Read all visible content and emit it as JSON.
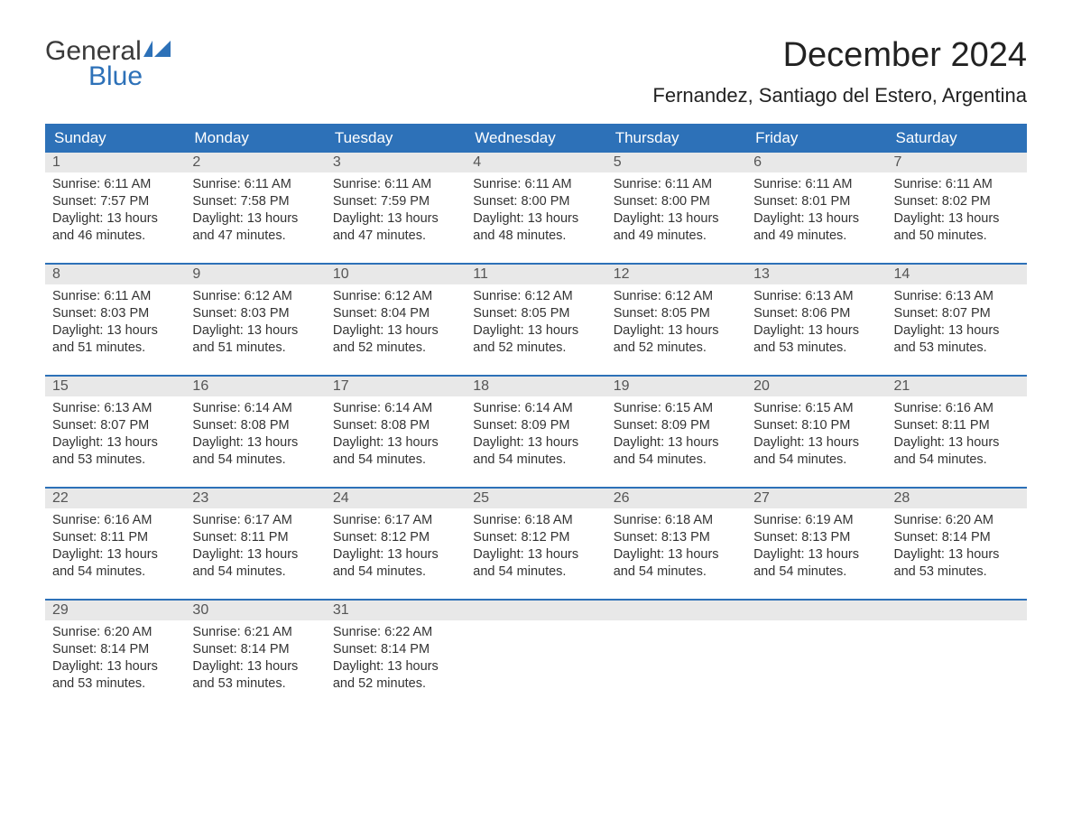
{
  "logo": {
    "general": "General",
    "blue": "Blue"
  },
  "title": "December 2024",
  "location": "Fernandez, Santiago del Estero, Argentina",
  "colors": {
    "header_bg": "#2d71b8",
    "daynum_bg": "#e8e8e8",
    "page_bg": "#ffffff",
    "text": "#333333",
    "logo_blue": "#2d71b8"
  },
  "calendar": {
    "type": "table",
    "columns": [
      "Sunday",
      "Monday",
      "Tuesday",
      "Wednesday",
      "Thursday",
      "Friday",
      "Saturday"
    ],
    "cell_font_size": 14.5,
    "header_font_size": 17,
    "weeks": [
      [
        {
          "n": "1",
          "sunrise": "Sunrise: 6:11 AM",
          "sunset": "Sunset: 7:57 PM",
          "d1": "Daylight: 13 hours",
          "d2": "and 46 minutes."
        },
        {
          "n": "2",
          "sunrise": "Sunrise: 6:11 AM",
          "sunset": "Sunset: 7:58 PM",
          "d1": "Daylight: 13 hours",
          "d2": "and 47 minutes."
        },
        {
          "n": "3",
          "sunrise": "Sunrise: 6:11 AM",
          "sunset": "Sunset: 7:59 PM",
          "d1": "Daylight: 13 hours",
          "d2": "and 47 minutes."
        },
        {
          "n": "4",
          "sunrise": "Sunrise: 6:11 AM",
          "sunset": "Sunset: 8:00 PM",
          "d1": "Daylight: 13 hours",
          "d2": "and 48 minutes."
        },
        {
          "n": "5",
          "sunrise": "Sunrise: 6:11 AM",
          "sunset": "Sunset: 8:00 PM",
          "d1": "Daylight: 13 hours",
          "d2": "and 49 minutes."
        },
        {
          "n": "6",
          "sunrise": "Sunrise: 6:11 AM",
          "sunset": "Sunset: 8:01 PM",
          "d1": "Daylight: 13 hours",
          "d2": "and 49 minutes."
        },
        {
          "n": "7",
          "sunrise": "Sunrise: 6:11 AM",
          "sunset": "Sunset: 8:02 PM",
          "d1": "Daylight: 13 hours",
          "d2": "and 50 minutes."
        }
      ],
      [
        {
          "n": "8",
          "sunrise": "Sunrise: 6:11 AM",
          "sunset": "Sunset: 8:03 PM",
          "d1": "Daylight: 13 hours",
          "d2": "and 51 minutes."
        },
        {
          "n": "9",
          "sunrise": "Sunrise: 6:12 AM",
          "sunset": "Sunset: 8:03 PM",
          "d1": "Daylight: 13 hours",
          "d2": "and 51 minutes."
        },
        {
          "n": "10",
          "sunrise": "Sunrise: 6:12 AM",
          "sunset": "Sunset: 8:04 PM",
          "d1": "Daylight: 13 hours",
          "d2": "and 52 minutes."
        },
        {
          "n": "11",
          "sunrise": "Sunrise: 6:12 AM",
          "sunset": "Sunset: 8:05 PM",
          "d1": "Daylight: 13 hours",
          "d2": "and 52 minutes."
        },
        {
          "n": "12",
          "sunrise": "Sunrise: 6:12 AM",
          "sunset": "Sunset: 8:05 PM",
          "d1": "Daylight: 13 hours",
          "d2": "and 52 minutes."
        },
        {
          "n": "13",
          "sunrise": "Sunrise: 6:13 AM",
          "sunset": "Sunset: 8:06 PM",
          "d1": "Daylight: 13 hours",
          "d2": "and 53 minutes."
        },
        {
          "n": "14",
          "sunrise": "Sunrise: 6:13 AM",
          "sunset": "Sunset: 8:07 PM",
          "d1": "Daylight: 13 hours",
          "d2": "and 53 minutes."
        }
      ],
      [
        {
          "n": "15",
          "sunrise": "Sunrise: 6:13 AM",
          "sunset": "Sunset: 8:07 PM",
          "d1": "Daylight: 13 hours",
          "d2": "and 53 minutes."
        },
        {
          "n": "16",
          "sunrise": "Sunrise: 6:14 AM",
          "sunset": "Sunset: 8:08 PM",
          "d1": "Daylight: 13 hours",
          "d2": "and 54 minutes."
        },
        {
          "n": "17",
          "sunrise": "Sunrise: 6:14 AM",
          "sunset": "Sunset: 8:08 PM",
          "d1": "Daylight: 13 hours",
          "d2": "and 54 minutes."
        },
        {
          "n": "18",
          "sunrise": "Sunrise: 6:14 AM",
          "sunset": "Sunset: 8:09 PM",
          "d1": "Daylight: 13 hours",
          "d2": "and 54 minutes."
        },
        {
          "n": "19",
          "sunrise": "Sunrise: 6:15 AM",
          "sunset": "Sunset: 8:09 PM",
          "d1": "Daylight: 13 hours",
          "d2": "and 54 minutes."
        },
        {
          "n": "20",
          "sunrise": "Sunrise: 6:15 AM",
          "sunset": "Sunset: 8:10 PM",
          "d1": "Daylight: 13 hours",
          "d2": "and 54 minutes."
        },
        {
          "n": "21",
          "sunrise": "Sunrise: 6:16 AM",
          "sunset": "Sunset: 8:11 PM",
          "d1": "Daylight: 13 hours",
          "d2": "and 54 minutes."
        }
      ],
      [
        {
          "n": "22",
          "sunrise": "Sunrise: 6:16 AM",
          "sunset": "Sunset: 8:11 PM",
          "d1": "Daylight: 13 hours",
          "d2": "and 54 minutes."
        },
        {
          "n": "23",
          "sunrise": "Sunrise: 6:17 AM",
          "sunset": "Sunset: 8:11 PM",
          "d1": "Daylight: 13 hours",
          "d2": "and 54 minutes."
        },
        {
          "n": "24",
          "sunrise": "Sunrise: 6:17 AM",
          "sunset": "Sunset: 8:12 PM",
          "d1": "Daylight: 13 hours",
          "d2": "and 54 minutes."
        },
        {
          "n": "25",
          "sunrise": "Sunrise: 6:18 AM",
          "sunset": "Sunset: 8:12 PM",
          "d1": "Daylight: 13 hours",
          "d2": "and 54 minutes."
        },
        {
          "n": "26",
          "sunrise": "Sunrise: 6:18 AM",
          "sunset": "Sunset: 8:13 PM",
          "d1": "Daylight: 13 hours",
          "d2": "and 54 minutes."
        },
        {
          "n": "27",
          "sunrise": "Sunrise: 6:19 AM",
          "sunset": "Sunset: 8:13 PM",
          "d1": "Daylight: 13 hours",
          "d2": "and 54 minutes."
        },
        {
          "n": "28",
          "sunrise": "Sunrise: 6:20 AM",
          "sunset": "Sunset: 8:14 PM",
          "d1": "Daylight: 13 hours",
          "d2": "and 53 minutes."
        }
      ],
      [
        {
          "n": "29",
          "sunrise": "Sunrise: 6:20 AM",
          "sunset": "Sunset: 8:14 PM",
          "d1": "Daylight: 13 hours",
          "d2": "and 53 minutes."
        },
        {
          "n": "30",
          "sunrise": "Sunrise: 6:21 AM",
          "sunset": "Sunset: 8:14 PM",
          "d1": "Daylight: 13 hours",
          "d2": "and 53 minutes."
        },
        {
          "n": "31",
          "sunrise": "Sunrise: 6:22 AM",
          "sunset": "Sunset: 8:14 PM",
          "d1": "Daylight: 13 hours",
          "d2": "and 52 minutes."
        },
        null,
        null,
        null,
        null
      ]
    ]
  }
}
